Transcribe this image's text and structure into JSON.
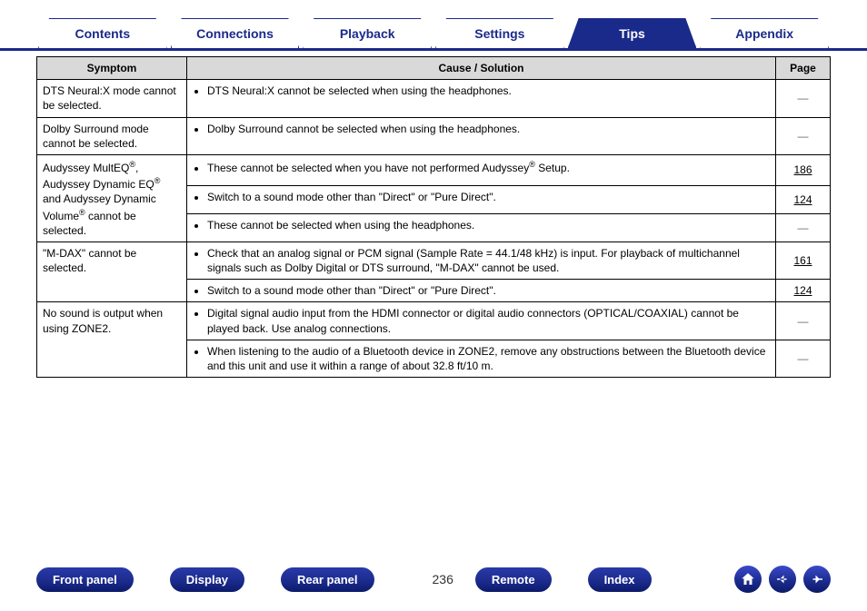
{
  "colors": {
    "brand": "#1a2a8a",
    "header_bg": "#d9d9d9",
    "table_border": "#000000",
    "page_bg": "#ffffff"
  },
  "tabs": [
    {
      "label": "Contents",
      "active": false
    },
    {
      "label": "Connections",
      "active": false
    },
    {
      "label": "Playback",
      "active": false
    },
    {
      "label": "Settings",
      "active": false
    },
    {
      "label": "Tips",
      "active": true
    },
    {
      "label": "Appendix",
      "active": false
    }
  ],
  "table": {
    "headers": {
      "symptom": "Symptom",
      "cause": "Cause / Solution",
      "page": "Page"
    },
    "rows": [
      {
        "symptom": "DTS Neural:X mode cannot be selected.",
        "causes": [
          {
            "text": "DTS Neural:X cannot be selected when using the headphones.",
            "page": "—"
          }
        ]
      },
      {
        "symptom": "Dolby Surround mode cannot be selected.",
        "causes": [
          {
            "text": "Dolby Surround cannot be selected when using the headphones.",
            "page": "—"
          }
        ]
      },
      {
        "symptom_html": "Audyssey MultEQ<sup>®</sup>, Audyssey Dynamic EQ<sup>®</sup> and Audyssey Dynamic Volume<sup>®</sup> cannot be selected.",
        "causes": [
          {
            "html": "These cannot be selected when you have not performed Audyssey<sup>®</sup> Setup.",
            "page": "186",
            "link": true
          },
          {
            "text": "Switch to a sound mode other than \"Direct\" or \"Pure Direct\".",
            "page": "124",
            "link": true
          },
          {
            "text": "These cannot be selected when using the headphones.",
            "page": "—"
          }
        ]
      },
      {
        "symptom": "\"M-DAX\" cannot be selected.",
        "causes": [
          {
            "text": "Check that an analog signal or PCM signal (Sample Rate = 44.1/48 kHz) is input. For playback of multichannel signals such as Dolby Digital or DTS surround, \"M-DAX\" cannot be used.",
            "page": "161",
            "link": true
          },
          {
            "text": "Switch to a sound mode other than \"Direct\" or \"Pure Direct\".",
            "page": "124",
            "link": true
          }
        ]
      },
      {
        "symptom": "No sound is output when using ZONE2.",
        "causes": [
          {
            "text": "Digital signal audio input from the HDMI connector or digital audio connectors (OPTICAL/COAXIAL) cannot be played back. Use analog connections.",
            "page": "—"
          },
          {
            "text": "When listening to the audio of a Bluetooth device in ZONE2, remove any obstructions between the Bluetooth device and this unit and use it within a range of about 32.8 ft/10 m.",
            "page": "—"
          }
        ]
      }
    ]
  },
  "bottom": {
    "buttons": [
      "Front panel",
      "Display",
      "Rear panel"
    ],
    "page_number": "236",
    "buttons_right": [
      "Remote",
      "Index"
    ],
    "icons": [
      "home-icon",
      "prev-icon",
      "next-icon"
    ]
  }
}
